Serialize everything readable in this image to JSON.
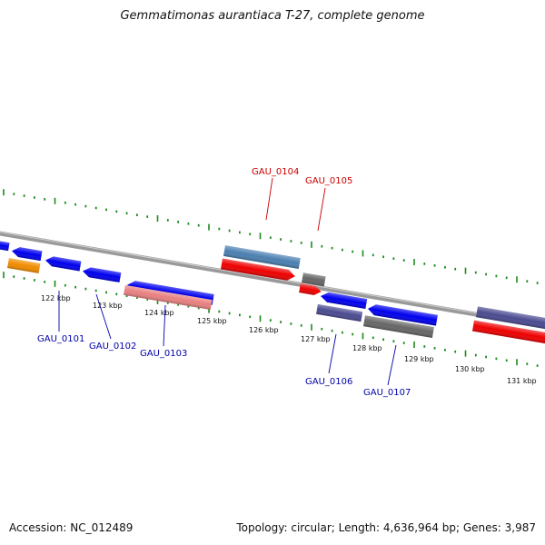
{
  "title": "Gemmatimonas aurantiaca T-27, complete genome",
  "accession_text": "Accession: NC_012489",
  "topology_text": "Topology: circular; Length: 4,636,964 bp; Genes: 3,987",
  "colors": {
    "backbone": "#888888",
    "tick": "#1a8a1a",
    "cds_blue": "#0000ee",
    "cds_red": "#ee0000",
    "cds_orange": "#f08c00",
    "cds_pink": "#e88080",
    "cds_steelblue": "#4a7fb0",
    "cds_gray": "#666666",
    "cds_slate": "#4a4a90",
    "label_forward": "#cc0000",
    "label_reverse": "#0000aa"
  },
  "scale_ticks": [
    {
      "label": "122 kbp"
    },
    {
      "label": "123 kbp"
    },
    {
      "label": "124 kbp"
    },
    {
      "label": "125 kbp"
    },
    {
      "label": "126 kbp"
    },
    {
      "label": "127 kbp"
    },
    {
      "label": "128 kbp"
    },
    {
      "label": "129 kbp"
    },
    {
      "label": "130 kbp"
    },
    {
      "label": "131 kbp"
    }
  ],
  "gene_labels": [
    {
      "id": "GAU_0101",
      "strand": "reverse"
    },
    {
      "id": "GAU_0102",
      "strand": "reverse"
    },
    {
      "id": "GAU_0103",
      "strand": "reverse"
    },
    {
      "id": "GAU_0104",
      "strand": "forward"
    },
    {
      "id": "GAU_0105",
      "strand": "forward"
    },
    {
      "id": "GAU_0106",
      "strand": "reverse"
    },
    {
      "id": "GAU_0107",
      "strand": "reverse"
    }
  ]
}
